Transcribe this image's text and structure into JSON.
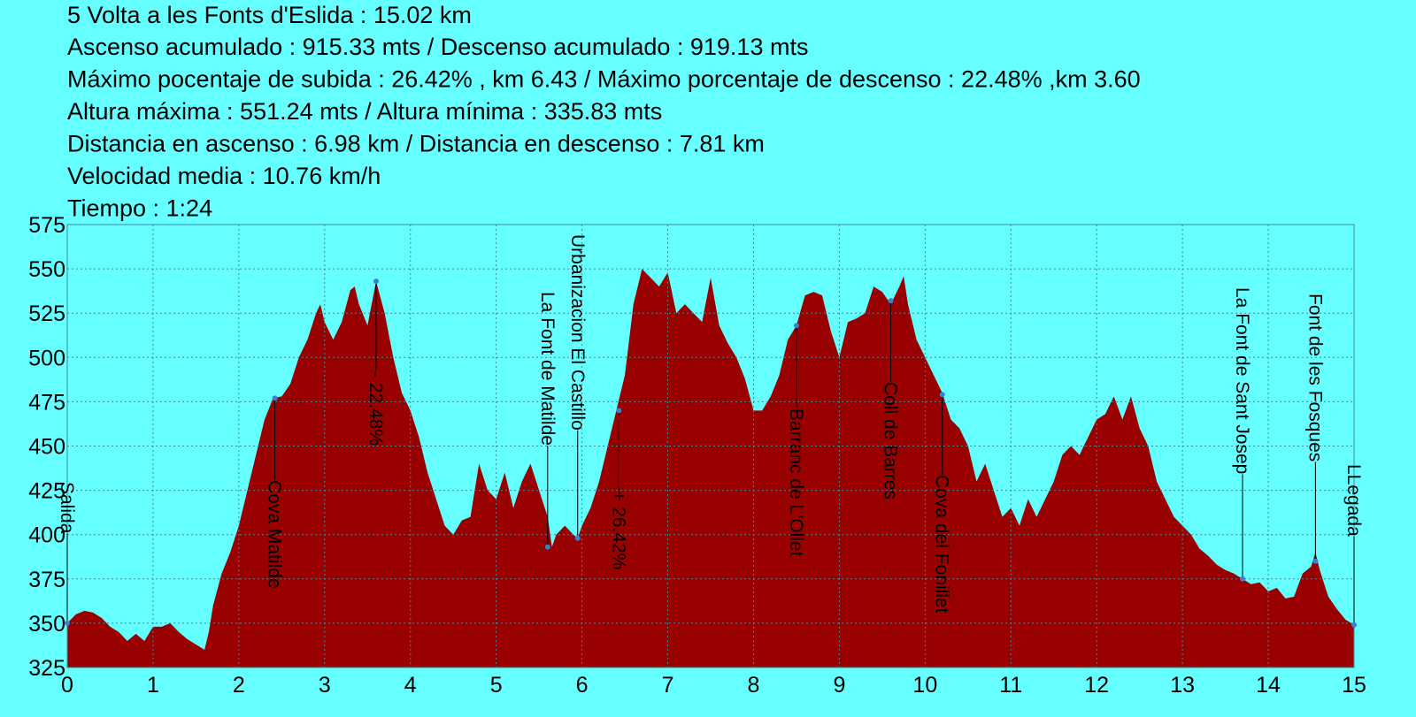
{
  "chart_data": {
    "type": "area",
    "title": "5 Volta a les Fonts d'Eslida  :  15.02 km",
    "stats": [
      "Ascenso acumulado  :  915.33 mts /  Descenso acumulado  :  919.13 mts",
      "Máximo pocentaje de subida  :  26.42% , km 6.43  /  Máximo porcentaje de descenso  :  22.48% ,km 3.60",
      "Altura máxima  :  551.24 mts  /  Altura mínima  :  335.83 mts",
      "Distancia en ascenso  :  6.98 km   /  Distancia en descenso  :  7.81 km",
      "Velocidad media  :  10.76 km/h",
      "Tiempo  :  1:24"
    ],
    "x": [
      0,
      0.1,
      0.2,
      0.3,
      0.4,
      0.5,
      0.6,
      0.7,
      0.8,
      0.9,
      1.0,
      1.1,
      1.2,
      1.3,
      1.4,
      1.5,
      1.6,
      1.65,
      1.7,
      1.8,
      1.9,
      2.0,
      2.1,
      2.2,
      2.3,
      2.4,
      2.5,
      2.6,
      2.7,
      2.8,
      2.9,
      2.95,
      3.0,
      3.1,
      3.2,
      3.3,
      3.35,
      3.4,
      3.5,
      3.6,
      3.7,
      3.8,
      3.9,
      4.0,
      4.1,
      4.2,
      4.3,
      4.4,
      4.5,
      4.6,
      4.7,
      4.8,
      4.9,
      5.0,
      5.1,
      5.2,
      5.3,
      5.4,
      5.5,
      5.6,
      5.65,
      5.7,
      5.8,
      5.9,
      5.95,
      6.0,
      6.1,
      6.2,
      6.3,
      6.4,
      6.5,
      6.6,
      6.7,
      6.8,
      6.9,
      7.0,
      7.1,
      7.2,
      7.3,
      7.4,
      7.5,
      7.6,
      7.7,
      7.8,
      7.9,
      8.0,
      8.1,
      8.2,
      8.3,
      8.4,
      8.5,
      8.6,
      8.7,
      8.8,
      8.9,
      9.0,
      9.1,
      9.2,
      9.3,
      9.4,
      9.5,
      9.6,
      9.7,
      9.75,
      9.8,
      9.9,
      10.0,
      10.1,
      10.2,
      10.3,
      10.4,
      10.5,
      10.6,
      10.7,
      10.8,
      10.9,
      11.0,
      11.1,
      11.2,
      11.3,
      11.4,
      11.5,
      11.6,
      11.7,
      11.8,
      11.9,
      12.0,
      12.1,
      12.2,
      12.3,
      12.4,
      12.5,
      12.6,
      12.7,
      12.8,
      12.9,
      13.0,
      13.1,
      13.2,
      13.3,
      13.4,
      13.5,
      13.6,
      13.7,
      13.8,
      13.9,
      14.0,
      14.1,
      14.2,
      14.3,
      14.4,
      14.5,
      14.55,
      14.6,
      14.7,
      14.8,
      14.9,
      15.0
    ],
    "values": [
      350,
      355,
      357,
      356,
      353,
      348,
      345,
      340,
      344,
      340,
      348,
      348,
      350,
      345,
      341,
      338,
      335,
      345,
      360,
      378,
      390,
      405,
      425,
      445,
      465,
      477,
      478,
      485,
      500,
      510,
      525,
      530,
      520,
      510,
      520,
      538,
      540,
      530,
      518,
      543,
      525,
      500,
      480,
      470,
      455,
      435,
      420,
      405,
      400,
      408,
      410,
      440,
      425,
      420,
      435,
      415,
      430,
      440,
      425,
      410,
      393,
      400,
      405,
      400,
      398,
      405,
      415,
      430,
      450,
      470,
      490,
      530,
      550,
      545,
      540,
      548,
      525,
      530,
      525,
      520,
      545,
      518,
      508,
      500,
      488,
      470,
      470,
      478,
      490,
      510,
      518,
      535,
      537,
      535,
      515,
      500,
      520,
      522,
      525,
      540,
      537,
      530,
      540,
      546,
      530,
      510,
      500,
      490,
      480,
      465,
      460,
      450,
      430,
      440,
      425,
      410,
      415,
      405,
      420,
      410,
      420,
      430,
      445,
      450,
      445,
      455,
      465,
      468,
      478,
      465,
      478,
      460,
      450,
      430,
      420,
      410,
      405,
      400,
      392,
      388,
      383,
      380,
      378,
      375,
      372,
      373,
      368,
      370,
      364,
      365,
      378,
      382,
      390,
      380,
      365,
      358,
      352,
      349
    ],
    "color": "#990000",
    "xlim": [
      0,
      15
    ],
    "xticks": [
      0,
      1,
      2,
      3,
      4,
      5,
      6,
      7,
      8,
      9,
      10,
      11,
      12,
      13,
      14,
      15
    ],
    "ylim": [
      325,
      575
    ],
    "yticks": [
      325,
      350,
      375,
      400,
      425,
      450,
      475,
      500,
      525,
      550,
      575
    ],
    "grid": true,
    "annotations": [
      {
        "label": "Salida",
        "x": 0,
        "y": 350
      },
      {
        "label": "Cova Matilde",
        "x": 2.42,
        "y": 477
      },
      {
        "label": "- 22.48%",
        "x": 3.6,
        "y": 543
      },
      {
        "label": "La Font de Matilde",
        "x": 5.6,
        "y": 393
      },
      {
        "label": "Urbanizacion  El Castillo",
        "x": 5.95,
        "y": 398
      },
      {
        "label": "+ 26.42%",
        "x": 6.43,
        "y": 470
      },
      {
        "label": "Barranc de L'Ollet",
        "x": 8.5,
        "y": 518
      },
      {
        "label": "Coll de Barres",
        "x": 9.6,
        "y": 532
      },
      {
        "label": "Cova del Fonillet",
        "x": 10.2,
        "y": 479
      },
      {
        "label": "La Font de Sant Josep",
        "x": 13.7,
        "y": 375
      },
      {
        "label": "Font de les Fosques",
        "x": 14.55,
        "y": 385
      },
      {
        "label": "LLegada",
        "x": 15,
        "y": 349
      }
    ]
  }
}
